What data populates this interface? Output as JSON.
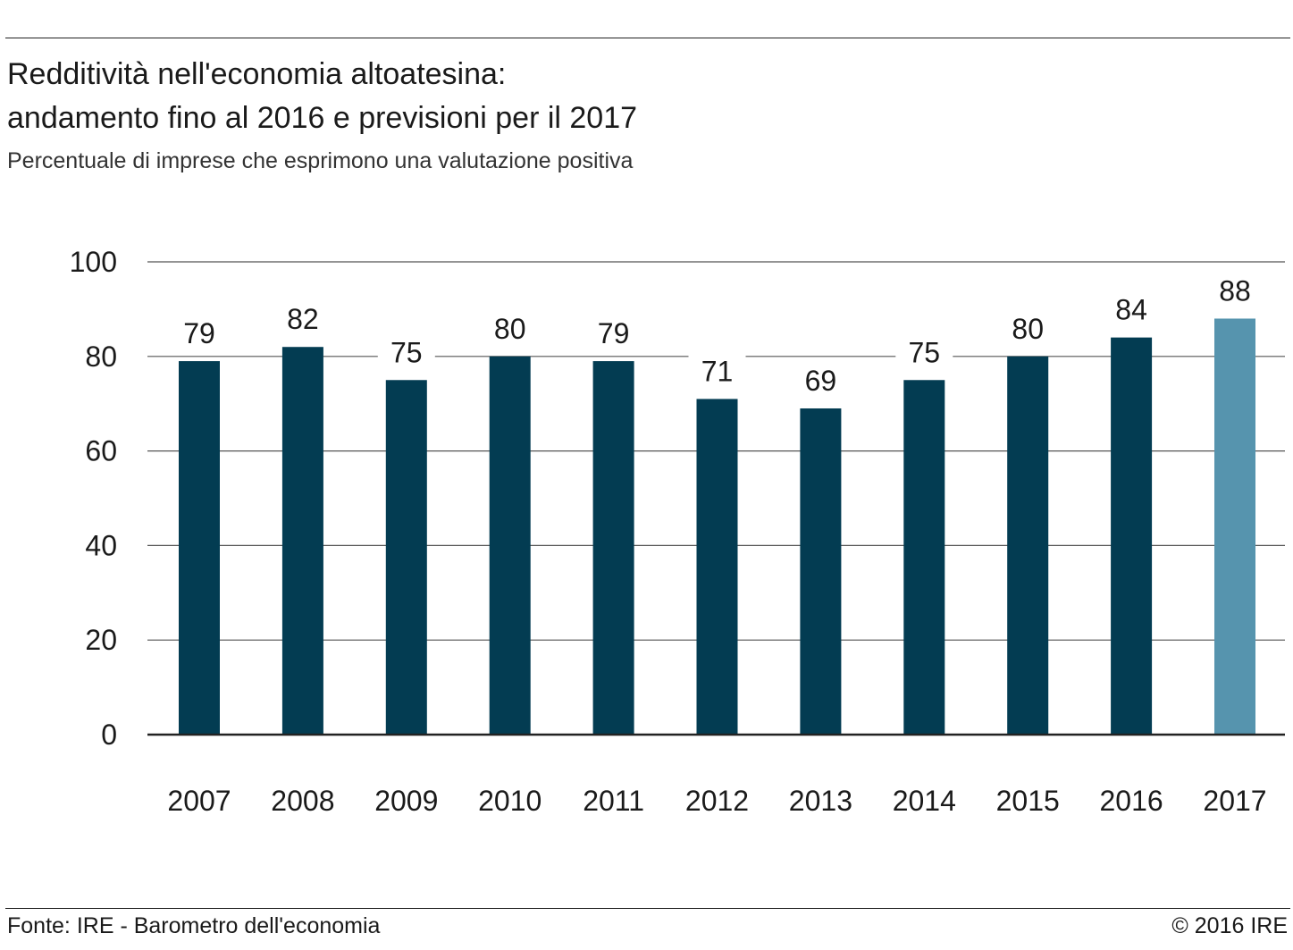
{
  "header": {
    "title_line1": "Redditività nell'economia altoatesina:",
    "title_line2": "andamento fino al 2016 e previsioni per il 2017",
    "subtitle": "Percentuale di imprese che esprimono una valutazione positiva"
  },
  "footer": {
    "source": "Fonte: IRE - Barometro dell'economia",
    "copyright": "© 2016 IRE"
  },
  "colors": {
    "bar_actual": "#033c52",
    "bar_forecast": "#5694ae",
    "gridline": "#555555",
    "baseline": "#222222"
  },
  "chart_data": {
    "type": "bar",
    "title": "Redditività nell'economia altoatesina: andamento fino al 2016 e previsioni per il 2017",
    "subtitle": "Percentuale di imprese che esprimono una valutazione positiva",
    "categories": [
      "2007",
      "2008",
      "2009",
      "2010",
      "2011",
      "2012",
      "2013",
      "2014",
      "2015",
      "2016",
      "2017"
    ],
    "series": [
      {
        "values": [
          79,
          82,
          75,
          80,
          79,
          71,
          69,
          75,
          80,
          84,
          88
        ]
      }
    ],
    "forecast_categories": [
      "2017"
    ],
    "data_labels": [
      "79",
      "82",
      "75",
      "80",
      "79",
      "71",
      "69",
      "75",
      "80",
      "84",
      "88"
    ],
    "yticks": [
      0,
      20,
      40,
      60,
      80,
      100
    ],
    "ylim": [
      0,
      100
    ],
    "xlabel": "",
    "ylabel": "",
    "grid": true,
    "legend": "none"
  }
}
